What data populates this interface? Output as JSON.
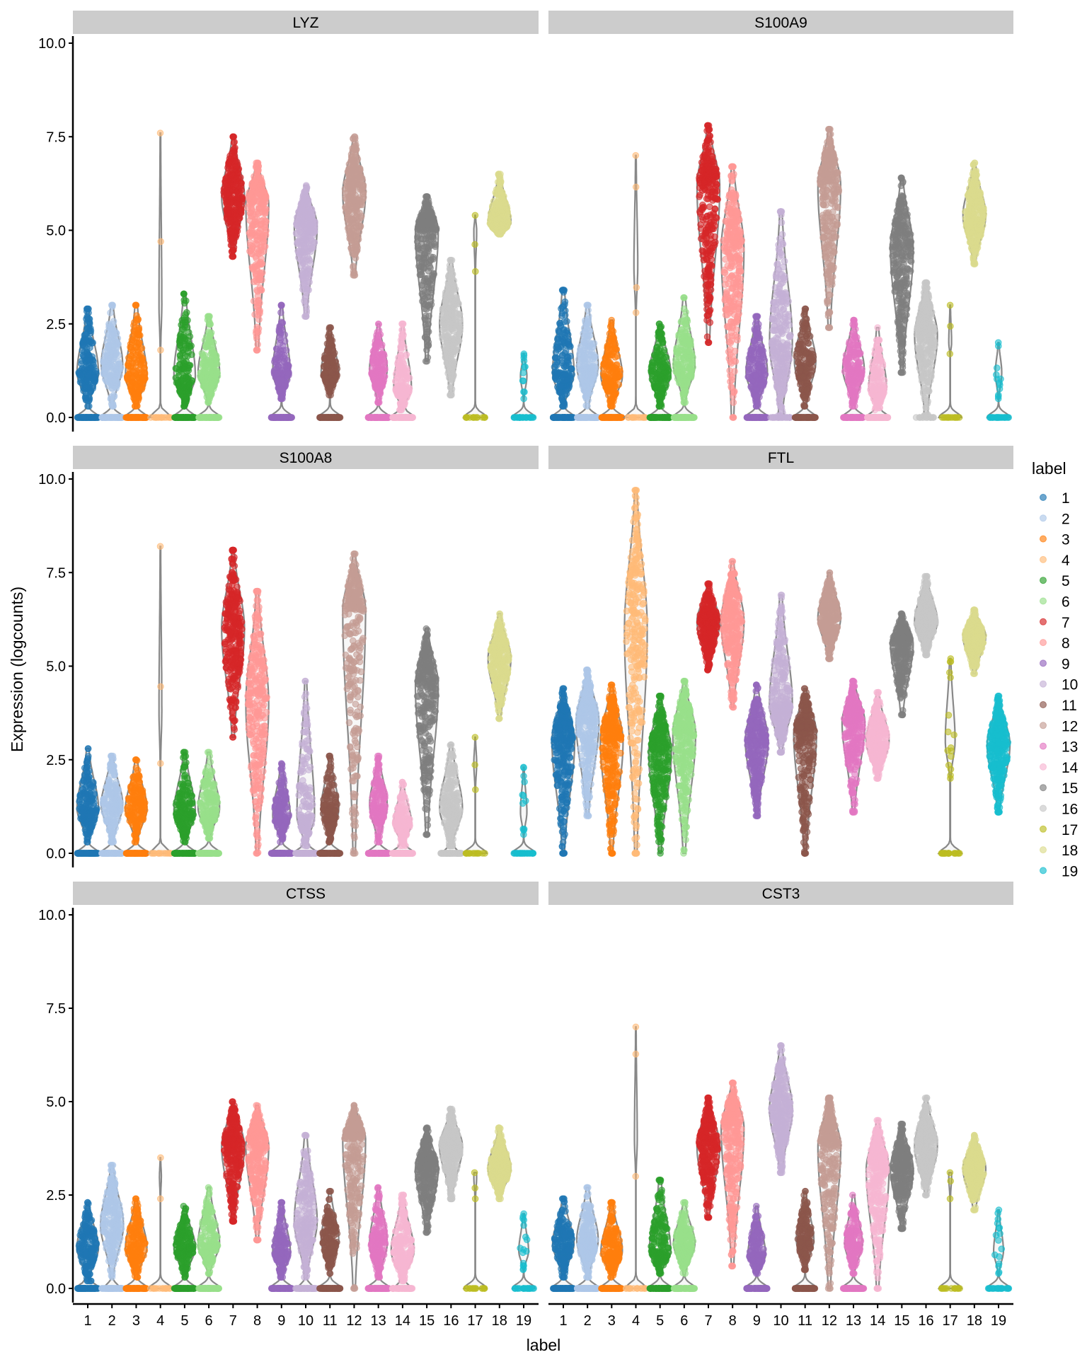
{
  "chart_data": {
    "type": "violin",
    "xlabel": "label",
    "ylabel": "Expression (logcounts)",
    "ylim": [
      0,
      10
    ],
    "yticks": [
      "0.0",
      "2.5",
      "5.0",
      "7.5",
      "10.0"
    ],
    "categories": [
      "1",
      "2",
      "3",
      "4",
      "5",
      "6",
      "7",
      "8",
      "9",
      "10",
      "11",
      "12",
      "13",
      "14",
      "15",
      "16",
      "17",
      "18",
      "19"
    ],
    "legend": {
      "title": "label",
      "position": "right"
    },
    "colors": [
      "#1f77b4",
      "#aec7e8",
      "#ff7f0e",
      "#ffbb78",
      "#2ca02c",
      "#98df8a",
      "#d62728",
      "#ff9896",
      "#9467bd",
      "#c5b0d5",
      "#8c564b",
      "#c49c94",
      "#e377c2",
      "#f7b6d2",
      "#7f7f7f",
      "#c7c7c7",
      "#bcbd22",
      "#dbdb8d",
      "#17becf"
    ],
    "value_format": "[min_nonzero, median_nonzero, max, zero_fraction] per cluster",
    "panels": [
      {
        "gene": "LYZ",
        "clusters": [
          [
            0.3,
            1.2,
            2.9,
            0.4
          ],
          [
            0.3,
            1.4,
            3.0,
            0.4
          ],
          [
            0.3,
            1.1,
            3.0,
            0.4
          ],
          [
            1.8,
            3.0,
            7.6,
            0.85
          ],
          [
            0.3,
            1.1,
            3.3,
            0.4
          ],
          [
            0.4,
            1.2,
            2.7,
            0.4
          ],
          [
            4.3,
            5.9,
            7.5,
            0
          ],
          [
            1.8,
            5.7,
            6.8,
            0
          ],
          [
            0.5,
            1.2,
            3.0,
            0.45
          ],
          [
            2.7,
            5.1,
            6.2,
            0
          ],
          [
            0.6,
            1.2,
            2.4,
            0.45
          ],
          [
            3.8,
            6.0,
            7.5,
            0
          ],
          [
            0.4,
            1.3,
            2.5,
            0.45
          ],
          [
            0.2,
            0.8,
            2.5,
            0.45
          ],
          [
            1.5,
            5.0,
            5.9,
            0
          ],
          [
            0.6,
            2.5,
            4.2,
            0
          ],
          [
            3.9,
            5.0,
            5.4,
            0.85
          ],
          [
            4.9,
            5.2,
            6.5,
            0
          ],
          [
            0.5,
            1.1,
            1.7,
            0.7
          ]
        ]
      },
      {
        "gene": "S100A9",
        "clusters": [
          [
            0.3,
            1.2,
            3.4,
            0.4
          ],
          [
            0.3,
            1.4,
            3.0,
            0.4
          ],
          [
            0.3,
            1.1,
            2.6,
            0.4
          ],
          [
            2.8,
            4.0,
            7.0,
            0.8
          ],
          [
            0.3,
            1.2,
            2.5,
            0.4
          ],
          [
            0.4,
            1.4,
            3.2,
            0.4
          ],
          [
            2.0,
            6.2,
            7.8,
            0
          ],
          [
            0.0,
            4.5,
            6.7,
            0
          ],
          [
            0.3,
            1.2,
            2.7,
            0.4
          ],
          [
            0.0,
            2.0,
            5.5,
            0.1
          ],
          [
            0.3,
            1.5,
            2.9,
            0.4
          ],
          [
            2.4,
            6.2,
            7.7,
            0
          ],
          [
            0.3,
            1.3,
            2.6,
            0.4
          ],
          [
            0.2,
            0.8,
            2.4,
            0.45
          ],
          [
            1.2,
            4.5,
            6.4,
            0
          ],
          [
            0.0,
            2.2,
            3.6,
            0.05
          ],
          [
            1.7,
            2.0,
            3.0,
            0.85
          ],
          [
            4.1,
            5.4,
            6.8,
            0
          ],
          [
            0.5,
            1.2,
            2.0,
            0.7
          ]
        ]
      },
      {
        "gene": "S100A8",
        "clusters": [
          [
            0.3,
            1.2,
            2.8,
            0.4
          ],
          [
            0.3,
            1.3,
            2.6,
            0.4
          ],
          [
            0.3,
            1.2,
            2.5,
            0.4
          ],
          [
            2.4,
            3.8,
            8.2,
            0.85
          ],
          [
            0.3,
            1.1,
            2.7,
            0.4
          ],
          [
            0.4,
            1.2,
            2.7,
            0.4
          ],
          [
            3.1,
            6.0,
            8.1,
            0
          ],
          [
            0.0,
            4.0,
            7.0,
            0
          ],
          [
            0.3,
            1.0,
            2.4,
            0.45
          ],
          [
            0.2,
            1.0,
            4.6,
            0.45
          ],
          [
            0.3,
            1.2,
            2.6,
            0.45
          ],
          [
            0.0,
            6.5,
            8.0,
            0
          ],
          [
            0.3,
            1.3,
            2.6,
            0.45
          ],
          [
            0.2,
            0.8,
            1.9,
            0.45
          ],
          [
            0.5,
            4.5,
            6.0,
            0
          ],
          [
            0.2,
            1.2,
            2.9,
            0.3
          ],
          [
            1.7,
            2.4,
            3.1,
            0.85
          ],
          [
            3.6,
            5.2,
            6.4,
            0
          ],
          [
            0.5,
            1.1,
            2.3,
            0.7
          ]
        ]
      },
      {
        "gene": "FTL",
        "clusters": [
          [
            0.0,
            3.0,
            4.4,
            0
          ],
          [
            1.0,
            3.5,
            4.9,
            0
          ],
          [
            0.0,
            3.0,
            4.5,
            0
          ],
          [
            0.0,
            6.0,
            9.7,
            0
          ],
          [
            0.0,
            2.7,
            4.2,
            0
          ],
          [
            0.0,
            3.2,
            4.6,
            0
          ],
          [
            4.9,
            6.2,
            7.2,
            0
          ],
          [
            3.9,
            6.2,
            7.8,
            0
          ],
          [
            1.0,
            3.0,
            4.5,
            0
          ],
          [
            2.7,
            4.0,
            6.9,
            0
          ],
          [
            0.0,
            3.2,
            4.4,
            0
          ],
          [
            5.2,
            6.3,
            7.5,
            0
          ],
          [
            1.1,
            3.5,
            4.6,
            0
          ],
          [
            2.0,
            3.0,
            4.3,
            0
          ],
          [
            3.7,
            5.6,
            6.4,
            0
          ],
          [
            5.3,
            6.2,
            7.4,
            0
          ],
          [
            2.0,
            3.0,
            5.2,
            0.6
          ],
          [
            4.8,
            5.8,
            6.5,
            0
          ],
          [
            1.1,
            2.9,
            4.2,
            0
          ]
        ]
      },
      {
        "gene": "CTSS",
        "clusters": [
          [
            0.2,
            1.1,
            2.3,
            0.4
          ],
          [
            0.3,
            1.7,
            3.3,
            0.3
          ],
          [
            0.3,
            1.1,
            2.4,
            0.4
          ],
          [
            2.4,
            3.0,
            3.5,
            0.9
          ],
          [
            0.3,
            1.1,
            2.2,
            0.4
          ],
          [
            0.4,
            1.2,
            2.7,
            0.4
          ],
          [
            1.8,
            3.8,
            5.0,
            0
          ],
          [
            1.3,
            3.8,
            4.9,
            0
          ],
          [
            0.3,
            1.0,
            2.3,
            0.45
          ],
          [
            0.3,
            1.8,
            4.1,
            0.3
          ],
          [
            0.4,
            1.3,
            2.6,
            0.45
          ],
          [
            0.0,
            4.0,
            4.9,
            0
          ],
          [
            0.3,
            1.2,
            2.7,
            0.45
          ],
          [
            0.2,
            1.0,
            2.5,
            0.3
          ],
          [
            1.5,
            3.2,
            4.3,
            0
          ],
          [
            2.4,
            3.8,
            4.8,
            0
          ],
          [
            2.4,
            3.0,
            3.1,
            0.85
          ],
          [
            2.4,
            3.2,
            4.3,
            0
          ],
          [
            0.5,
            1.0,
            2.0,
            0.6
          ]
        ]
      },
      {
        "gene": "CST3",
        "clusters": [
          [
            0.3,
            1.2,
            2.4,
            0.4
          ],
          [
            0.3,
            1.3,
            2.7,
            0.4
          ],
          [
            0.3,
            1.0,
            2.3,
            0.4
          ],
          [
            3.0,
            4.0,
            7.0,
            0.85
          ],
          [
            0.4,
            1.0,
            2.9,
            0.4
          ],
          [
            0.4,
            1.2,
            2.3,
            0.4
          ],
          [
            1.9,
            3.8,
            5.1,
            0
          ],
          [
            0.6,
            4.3,
            5.5,
            0
          ],
          [
            0.4,
            0.9,
            2.2,
            0.45
          ],
          [
            3.1,
            4.8,
            6.5,
            0
          ],
          [
            0.5,
            1.3,
            2.6,
            0.45
          ],
          [
            0.0,
            3.8,
            5.1,
            0
          ],
          [
            0.4,
            1.2,
            2.5,
            0.45
          ],
          [
            0.0,
            3.2,
            4.5,
            0
          ],
          [
            1.6,
            3.2,
            4.4,
            0
          ],
          [
            2.5,
            3.8,
            5.1,
            0
          ],
          [
            2.4,
            3.0,
            3.1,
            0.85
          ],
          [
            2.1,
            3.2,
            4.1,
            0
          ],
          [
            0.4,
            1.0,
            2.1,
            0.6
          ]
        ]
      }
    ]
  }
}
